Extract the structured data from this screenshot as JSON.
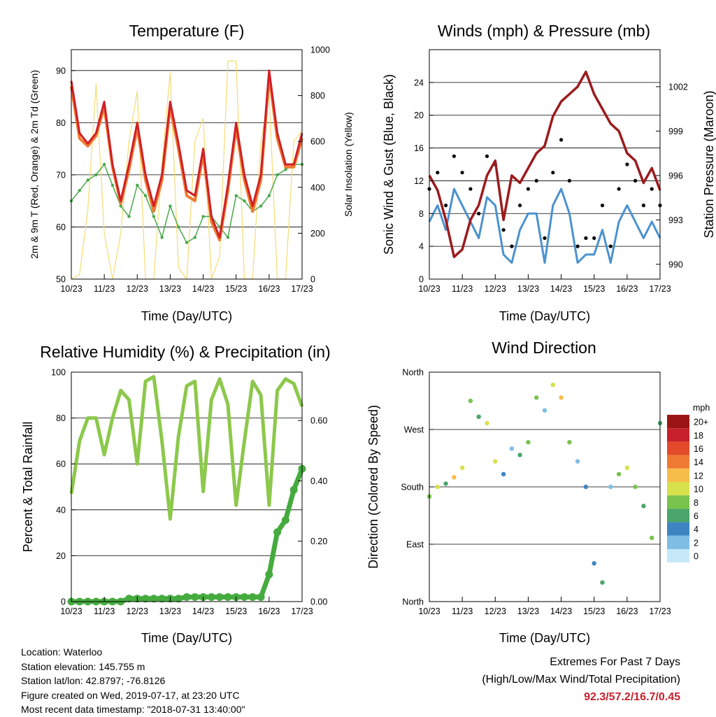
{
  "x_ticks": [
    "10/23",
    "11/23",
    "12/23",
    "13/23",
    "14/23",
    "15/23",
    "16/23",
    "17/23"
  ],
  "charts": {
    "temperature": {
      "title": "Temperature (F)",
      "xlabel": "Time (Day/UTC)",
      "ylabel_left": "2m & 9m T (Red, Orange) & 2m Td (Green)",
      "ylabel_right": "Solar Insolation (Yellow)",
      "yticks_left": [
        "50",
        "60",
        "70",
        "80",
        "90"
      ],
      "yticks_right": [
        "0",
        "200",
        "400",
        "600",
        "800",
        "1000"
      ]
    },
    "wind": {
      "title": "Winds (mph) & Pressure (mb)",
      "xlabel": "Time (Day/UTC)",
      "ylabel_left": "Sonic Wind & Gust (Blue, Black)",
      "ylabel_right": "Station Pressure (Maroon)",
      "yticks_left": [
        "0",
        "4",
        "8",
        "12",
        "16",
        "20",
        "24"
      ],
      "yticks_right": [
        "990",
        "993",
        "996",
        "999",
        "1002"
      ]
    },
    "humidity": {
      "title": "Relative Humidity (%) & Precipitation (in)",
      "xlabel": "Time (Day/UTC)",
      "ylabel_left": "Percent & Total Rainfall",
      "yticks_left": [
        "0",
        "20",
        "40",
        "60",
        "80",
        "100"
      ],
      "yticks_right": [
        "0.00",
        "0.20",
        "0.40",
        "0.60"
      ]
    },
    "direction": {
      "title": "Wind Direction",
      "xlabel": "Time (Day/UTC)",
      "ylabel_left": "Direction (Colored By Speed)",
      "yticks_left": [
        "North",
        "East",
        "South",
        "West",
        "North"
      ],
      "legend_title": "mph",
      "legend_labels": [
        "0",
        "2",
        "4",
        "6",
        "8",
        "10",
        "12",
        "14",
        "16",
        "18",
        "20+"
      ],
      "legend_colors": [
        "#c6e8f8",
        "#7fbde4",
        "#3d85c2",
        "#4aa66a",
        "#79c24c",
        "#d6e14b",
        "#f7bd4a",
        "#f07a31",
        "#e24a2a",
        "#c8202c",
        "#9b1515"
      ]
    }
  },
  "chart_data": [
    {
      "type": "line",
      "title": "Temperature (F)",
      "xlabel": "Time (Day/UTC)",
      "ylabel": "2m & 9m T (Red, Orange) & 2m Td (Green)",
      "ylim": [
        50,
        94
      ],
      "y2lim": [
        0,
        1000
      ],
      "x": [
        "10/23",
        "10/23+6h",
        "10/23+12h",
        "10/23+18h",
        "11/23",
        "11/23+6h",
        "11/23+12h",
        "11/23+18h",
        "12/23",
        "12/23+6h",
        "12/23+12h",
        "12/23+18h",
        "13/23",
        "13/23+6h",
        "13/23+12h",
        "13/23+18h",
        "14/23",
        "14/23+6h",
        "14/23+12h",
        "14/23+18h",
        "15/23",
        "15/23+6h",
        "15/23+12h",
        "15/23+18h",
        "16/23",
        "16/23+6h",
        "16/23+12h",
        "16/23+18h",
        "17/23"
      ],
      "series": [
        {
          "name": "2m T",
          "color": "#cf2027",
          "values": [
            88,
            78,
            76,
            78,
            84,
            72,
            65,
            72,
            80,
            70,
            64,
            70,
            84,
            76,
            67,
            66,
            75,
            62,
            58,
            68,
            80,
            70,
            64,
            70,
            90,
            78,
            72,
            72,
            78
          ]
        },
        {
          "name": "9m T",
          "color": "#f07a31",
          "values": [
            87,
            77,
            75.5,
            77.5,
            83,
            71.5,
            64.5,
            71,
            79,
            69,
            63,
            69,
            83,
            75,
            66,
            65,
            74,
            61,
            57.5,
            67,
            79,
            69,
            63,
            69,
            89,
            77,
            71.5,
            71.5,
            77
          ]
        },
        {
          "name": "2m Td",
          "color": "#4aa94a",
          "values": [
            65,
            67,
            69,
            70,
            72,
            68,
            64,
            62,
            68,
            66,
            62,
            58,
            64,
            60,
            57,
            58,
            62,
            62,
            60,
            58,
            66,
            65,
            63,
            64,
            66,
            70,
            71,
            72,
            72
          ]
        },
        {
          "name": "Solar Insolation",
          "axis": "right",
          "color": "#f5dc73",
          "values": [
            0,
            20,
            300,
            850,
            200,
            0,
            200,
            600,
            820,
            0,
            0,
            500,
            900,
            50,
            0,
            600,
            700,
            0,
            100,
            950,
            950,
            0,
            0,
            600,
            800,
            0,
            0,
            600,
            650
          ]
        }
      ]
    },
    {
      "type": "line",
      "title": "Winds (mph) & Pressure (mb)",
      "xlabel": "Time (Day/UTC)",
      "ylabel": "Sonic Wind & Gust (Blue, Black)",
      "ylim": [
        0,
        28
      ],
      "y2lim": [
        989,
        1004.5
      ],
      "x": [
        "10/23",
        "10/23+6h",
        "10/23+12h",
        "10/23+18h",
        "11/23",
        "11/23+6h",
        "11/23+12h",
        "11/23+18h",
        "12/23",
        "12/23+6h",
        "12/23+12h",
        "12/23+18h",
        "13/23",
        "13/23+6h",
        "13/23+12h",
        "13/23+18h",
        "14/23",
        "14/23+6h",
        "14/23+12h",
        "14/23+18h",
        "15/23",
        "15/23+6h",
        "15/23+12h",
        "15/23+18h",
        "16/23",
        "16/23+6h",
        "16/23+12h",
        "16/23+18h",
        "17/23"
      ],
      "series": [
        {
          "name": "Sonic Wind",
          "color": "#4b92cf",
          "values": [
            7,
            9,
            6,
            11,
            9,
            7,
            5,
            10,
            9,
            3,
            2,
            6,
            8,
            8,
            2,
            9,
            11,
            8,
            2,
            3,
            3,
            6,
            2,
            7,
            9,
            7,
            5,
            7,
            5
          ]
        },
        {
          "name": "Gust",
          "color": "#000000",
          "values": [
            11,
            13,
            9,
            15,
            13,
            11,
            8,
            15,
            14,
            6,
            4,
            9,
            11,
            12,
            5,
            13,
            17,
            12,
            4,
            5,
            5,
            9,
            4,
            11,
            14,
            12,
            9,
            11,
            9
          ]
        },
        {
          "name": "Station Pressure",
          "axis": "right",
          "color": "#9b1b1e",
          "values": [
            996,
            995,
            993,
            990.5,
            991,
            993,
            994,
            996,
            997,
            993,
            996,
            995.5,
            996.5,
            997.5,
            998,
            1000,
            1001,
            1001.5,
            1002,
            1003,
            1001.5,
            1000.5,
            999.5,
            999,
            997.5,
            997,
            995.5,
            996.5,
            995
          ]
        }
      ]
    },
    {
      "type": "line",
      "title": "Relative Humidity (%) & Precipitation (in)",
      "xlabel": "Time (Day/UTC)",
      "ylabel": "Percent & Total Rainfall",
      "ylim": [
        0,
        100
      ],
      "y2lim": [
        0,
        0.76
      ],
      "x": [
        "10/23",
        "10/23+6h",
        "10/23+12h",
        "10/23+18h",
        "11/23",
        "11/23+6h",
        "11/23+12h",
        "11/23+18h",
        "12/23",
        "12/23+6h",
        "12/23+12h",
        "12/23+18h",
        "13/23",
        "13/23+6h",
        "13/23+12h",
        "13/23+18h",
        "14/23",
        "14/23+6h",
        "14/23+12h",
        "14/23+18h",
        "15/23",
        "15/23+6h",
        "15/23+12h",
        "15/23+18h",
        "16/23",
        "16/23+6h",
        "16/23+12h",
        "16/23+18h",
        "17/23"
      ],
      "series": [
        {
          "name": "Relative Humidity",
          "color": "#8cc84b",
          "values": [
            47,
            70,
            80,
            80,
            64,
            80,
            92,
            88,
            60,
            96,
            98,
            70,
            36,
            72,
            94,
            96,
            48,
            88,
            97,
            86,
            42,
            70,
            96,
            90,
            42,
            92,
            97,
            95,
            85
          ]
        },
        {
          "name": "Total Precipitation",
          "axis": "right",
          "color": "#46ab3f",
          "values": [
            0,
            0,
            0,
            0,
            0,
            0,
            0,
            0.01,
            0.01,
            0.01,
            0.01,
            0.01,
            0.01,
            0.01,
            0.015,
            0.015,
            0.015,
            0.015,
            0.015,
            0.015,
            0.015,
            0.015,
            0.015,
            0.015,
            0.09,
            0.23,
            0.27,
            0.37,
            0.44
          ]
        }
      ]
    },
    {
      "type": "scatter",
      "title": "Wind Direction",
      "xlabel": "Time (Day/UTC)",
      "ylabel": "Direction (Colored By Speed)",
      "ylim": [
        0,
        360
      ],
      "x": [
        "10/23",
        "10/23+6h",
        "10/23+12h",
        "10/23+18h",
        "11/23",
        "11/23+6h",
        "11/23+12h",
        "11/23+18h",
        "12/23",
        "12/23+6h",
        "12/23+12h",
        "12/23+18h",
        "13/23",
        "13/23+6h",
        "13/23+12h",
        "13/23+18h",
        "14/23",
        "14/23+6h",
        "14/23+12h",
        "14/23+18h",
        "15/23",
        "15/23+6h",
        "15/23+12h",
        "15/23+18h",
        "16/23",
        "16/23+6h",
        "16/23+12h",
        "16/23+18h",
        "17/23"
      ],
      "series": [
        {
          "name": "Direction",
          "values": [
            165,
            180,
            185,
            195,
            210,
            315,
            290,
            280,
            220,
            200,
            240,
            230,
            250,
            320,
            300,
            340,
            320,
            250,
            220,
            180,
            60,
            30,
            180,
            200,
            210,
            180,
            150,
            100,
            280
          ]
        }
      ]
    }
  ],
  "info": {
    "location": "Location: Waterloo",
    "elevation": "Station elevation: 145.755 m",
    "latlon": "Station lat/lon: 42.8797; -76.8126",
    "created": "Figure created on Wed, 2019-07-17, at 23:20 UTC",
    "recent": "Most recent data timestamp: \"2018-07-31 13:40:00\""
  },
  "extremes": {
    "line1": "Extremes For Past 7 Days",
    "line2": "(High/Low/Max Wind/Total Precipitation)",
    "values": "92.3/57.2/16.7/0.45"
  }
}
